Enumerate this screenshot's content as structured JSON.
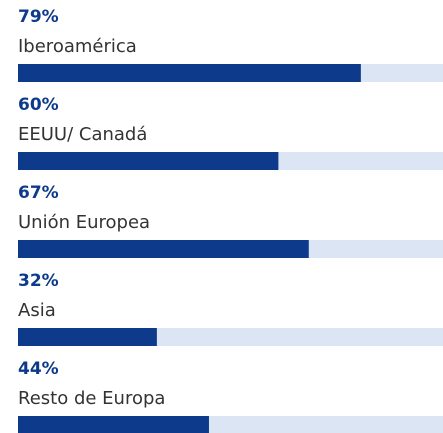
{
  "chart_data": {
    "type": "bar",
    "categories": [
      "Iberoamérica",
      "EEUU/ Canadá",
      "Unión Europea",
      "Asia",
      "Resto de Europa"
    ],
    "values": [
      79,
      60,
      67,
      32,
      44
    ],
    "value_labels": [
      "79%",
      "60%",
      "67%",
      "32%",
      "44%"
    ],
    "color": "#0d3a8a",
    "track_color": "#dce5f4",
    "xlim": [
      0,
      100
    ]
  }
}
